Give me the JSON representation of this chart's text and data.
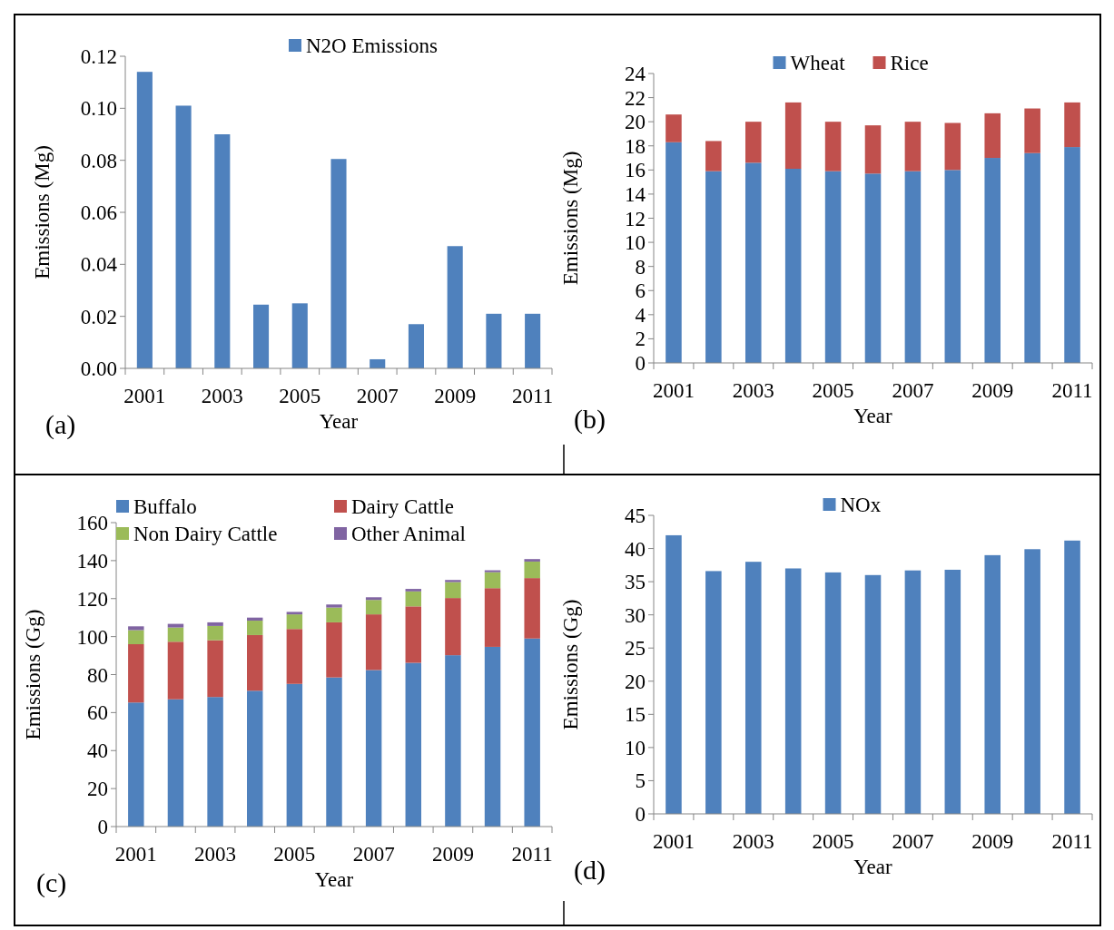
{
  "chart_data": [
    {
      "type": "bar",
      "xlabel": "Year",
      "ylabel": "Emissions (Mg)",
      "categories": [
        "2001",
        null,
        "2003",
        null,
        "2005",
        null,
        "2007",
        null,
        "2009",
        null,
        "2011"
      ],
      "series": [
        {
          "name": "N2O Emissions",
          "color": "#4f81bd",
          "values": [
            0.114,
            0.101,
            0.09,
            0.0245,
            0.025,
            0.0805,
            0.0035,
            0.017,
            0.047,
            0.021,
            0.021
          ]
        }
      ],
      "ylim": [
        0,
        0.12
      ],
      "yticks": [
        {
          "value": 0,
          "label": "0.00"
        },
        {
          "value": 0.02,
          "label": "0.02"
        },
        {
          "value": 0.04,
          "label": "0.04"
        },
        {
          "value": 0.06,
          "label": "0.06"
        },
        {
          "value": 0.08,
          "label": "0.08"
        },
        {
          "value": 0.1,
          "label": "0.10"
        },
        {
          "value": 0.12,
          "label": "0.12"
        }
      ],
      "legend": "top",
      "annotations": [
        "(a)"
      ]
    },
    {
      "type": "bar",
      "stacked": true,
      "xlabel": "Year",
      "ylabel": "Emissions (Mg)",
      "categories": [
        "2001",
        null,
        "2003",
        null,
        "2005",
        null,
        "2007",
        null,
        "2009",
        null,
        "2011"
      ],
      "series": [
        {
          "name": "Wheat",
          "color": "#4f81bd",
          "values": [
            18.3,
            15.9,
            16.6,
            16.1,
            15.9,
            15.7,
            15.9,
            16.0,
            17.0,
            17.4,
            17.9
          ]
        },
        {
          "name": "Rice",
          "color": "#c0504d",
          "values": [
            2.3,
            2.5,
            3.4,
            5.5,
            4.1,
            4.0,
            4.1,
            3.9,
            3.7,
            3.7,
            3.7
          ]
        }
      ],
      "ylim": [
        0,
        24
      ],
      "yticks": [
        0,
        2,
        4,
        6,
        8,
        10,
        12,
        14,
        16,
        18,
        20,
        22,
        24
      ],
      "legend": "top",
      "annotations": [
        "(b)"
      ]
    },
    {
      "type": "bar",
      "stacked": true,
      "xlabel": "Year",
      "ylabel": "Emissions (Gg)",
      "categories": [
        "2001",
        null,
        "2003",
        null,
        "2005",
        null,
        "2007",
        null,
        "2009",
        null,
        "2011"
      ],
      "series": [
        {
          "name": "Buffalo",
          "color": "#4f81bd",
          "values": [
            65.3,
            67.0,
            68.2,
            71.5,
            75.1,
            78.5,
            82.4,
            86.2,
            90.2,
            94.6,
            99.0
          ]
        },
        {
          "name": "Dairy Cattle",
          "color": "#c0504d",
          "values": [
            30.7,
            30.3,
            29.9,
            29.3,
            28.9,
            29.0,
            29.3,
            29.7,
            30.1,
            30.9,
            31.8
          ]
        },
        {
          "name": "Non Dairy Cattle",
          "color": "#9bbb59",
          "values": [
            7.4,
            7.5,
            7.5,
            7.6,
            7.7,
            7.8,
            7.6,
            7.9,
            8.4,
            8.4,
            8.7
          ]
        },
        {
          "name": "Other Animal",
          "color": "#8064a2",
          "values": [
            2.0,
            1.9,
            1.9,
            1.6,
            1.3,
            1.6,
            1.4,
            1.3,
            1.1,
            1.0,
            1.3
          ]
        }
      ],
      "ylim": [
        0,
        160
      ],
      "yticks": [
        0,
        20,
        40,
        60,
        80,
        100,
        120,
        140,
        160
      ],
      "legend": "top",
      "annotations": [
        "(c)"
      ]
    },
    {
      "type": "bar",
      "xlabel": "Year",
      "ylabel": "Emissions (Gg)",
      "categories": [
        "2001",
        null,
        "2003",
        null,
        "2005",
        null,
        "2007",
        null,
        "2009",
        null,
        "2011"
      ],
      "series": [
        {
          "name": "NOx",
          "color": "#4f81bd",
          "values": [
            42.0,
            36.6,
            38.0,
            37.0,
            36.4,
            36.0,
            36.7,
            36.8,
            39.0,
            39.9,
            41.2
          ]
        }
      ],
      "ylim": [
        0,
        45
      ],
      "yticks": [
        0,
        5,
        10,
        15,
        20,
        25,
        30,
        35,
        40,
        45
      ],
      "legend": "top",
      "annotations": [
        "(d)"
      ]
    }
  ]
}
